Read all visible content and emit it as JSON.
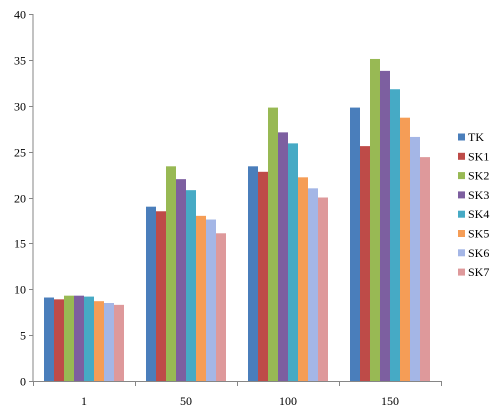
{
  "chart_data": {
    "type": "bar",
    "categories": [
      "1",
      "50",
      "100",
      "150"
    ],
    "series": [
      {
        "name": "TK",
        "color": "#4a7ebb",
        "values": [
          9.1,
          19.0,
          23.4,
          29.8
        ]
      },
      {
        "name": "SK1",
        "color": "#be4b48",
        "values": [
          8.9,
          18.5,
          22.8,
          25.6
        ]
      },
      {
        "name": "SK2",
        "color": "#98b954",
        "values": [
          9.3,
          23.4,
          29.8,
          35.1
        ]
      },
      {
        "name": "SK3",
        "color": "#7d5fa0",
        "values": [
          9.3,
          22.0,
          27.1,
          33.8
        ]
      },
      {
        "name": "SK4",
        "color": "#46aac5",
        "values": [
          9.2,
          20.8,
          25.9,
          31.8
        ]
      },
      {
        "name": "SK5",
        "color": "#f59d56",
        "values": [
          8.7,
          18.0,
          22.2,
          28.7
        ]
      },
      {
        "name": "SK6",
        "color": "#a4b6e6",
        "values": [
          8.5,
          17.6,
          21.0,
          26.6
        ]
      },
      {
        "name": "SK7",
        "color": "#de999b",
        "values": [
          8.3,
          16.1,
          20.0,
          24.4
        ]
      }
    ],
    "ylim": [
      0,
      40
    ],
    "yticks": [
      "0",
      "5",
      "10",
      "15",
      "20",
      "25",
      "30",
      "35",
      "40"
    ],
    "grid": false,
    "legend": "right"
  }
}
